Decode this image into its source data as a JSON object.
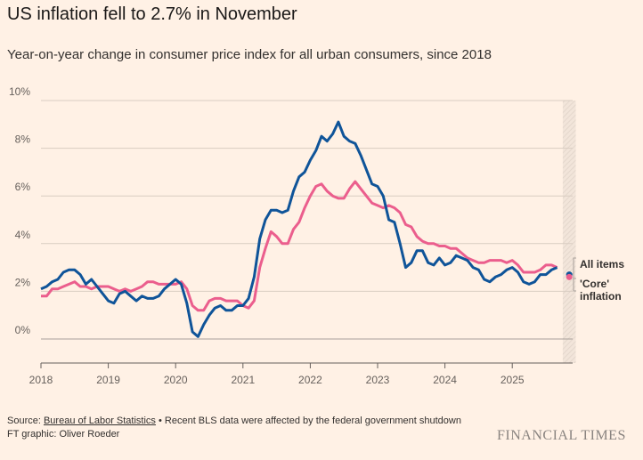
{
  "header": {
    "title": "US inflation fell to 2.7% in November",
    "subtitle": "Year-on-year change in consumer price index for all urban consumers, since 2018"
  },
  "chart_data": {
    "type": "line",
    "title": "US inflation fell to 2.7% in November",
    "xlabel": "",
    "ylabel": "",
    "ylim": [
      -1,
      10
    ],
    "yticks": [
      {
        "v": 10,
        "label": "10%"
      },
      {
        "v": 8,
        "label": "8%"
      },
      {
        "v": 6,
        "label": "6%"
      },
      {
        "v": 4,
        "label": "4%"
      },
      {
        "v": 2,
        "label": "2%"
      },
      {
        "v": 0,
        "label": "0%"
      }
    ],
    "xticks": [
      "2018",
      "2019",
      "2020",
      "2021",
      "2022",
      "2023",
      "2024",
      "2025"
    ],
    "start": "2018-01",
    "frequency": "monthly",
    "shaded_period": "2025-10 to 2025-11",
    "series": [
      {
        "name": "All items",
        "color": "#0f5499",
        "values": [
          2.1,
          2.2,
          2.4,
          2.5,
          2.8,
          2.9,
          2.9,
          2.7,
          2.3,
          2.5,
          2.2,
          1.9,
          1.6,
          1.5,
          1.9,
          2.0,
          1.8,
          1.6,
          1.8,
          1.7,
          1.7,
          1.8,
          2.1,
          2.3,
          2.5,
          2.3,
          1.5,
          0.3,
          0.1,
          0.6,
          1.0,
          1.3,
          1.4,
          1.2,
          1.2,
          1.4,
          1.4,
          1.7,
          2.6,
          4.2,
          5.0,
          5.4,
          5.4,
          5.3,
          5.4,
          6.2,
          6.8,
          7.0,
          7.5,
          7.9,
          8.5,
          8.3,
          8.6,
          9.1,
          8.5,
          8.3,
          8.2,
          7.7,
          7.1,
          6.5,
          6.4,
          6.0,
          5.0,
          4.9,
          4.0,
          3.0,
          3.2,
          3.7,
          3.7,
          3.2,
          3.1,
          3.4,
          3.1,
          3.2,
          3.5,
          3.4,
          3.3,
          3.0,
          2.9,
          2.5,
          2.4,
          2.6,
          2.7,
          2.9,
          3.0,
          2.8,
          2.4,
          2.3,
          2.4,
          2.7,
          2.7,
          2.9,
          3.0
        ],
        "latest": 2.7
      },
      {
        "name": "'Core' inflation",
        "color": "#eb5e8d",
        "values": [
          1.8,
          1.8,
          2.1,
          2.1,
          2.2,
          2.3,
          2.4,
          2.2,
          2.2,
          2.1,
          2.2,
          2.2,
          2.2,
          2.1,
          2.0,
          2.1,
          2.0,
          2.1,
          2.2,
          2.4,
          2.4,
          2.3,
          2.3,
          2.3,
          2.3,
          2.4,
          2.1,
          1.4,
          1.2,
          1.2,
          1.6,
          1.7,
          1.7,
          1.6,
          1.6,
          1.6,
          1.4,
          1.3,
          1.6,
          3.0,
          3.8,
          4.5,
          4.3,
          4.0,
          4.0,
          4.6,
          4.9,
          5.5,
          6.0,
          6.4,
          6.5,
          6.2,
          6.0,
          5.9,
          5.9,
          6.3,
          6.6,
          6.3,
          6.0,
          5.7,
          5.6,
          5.5,
          5.6,
          5.5,
          5.3,
          4.8,
          4.7,
          4.3,
          4.1,
          4.0,
          4.0,
          3.9,
          3.9,
          3.8,
          3.8,
          3.6,
          3.4,
          3.3,
          3.2,
          3.2,
          3.3,
          3.3,
          3.3,
          3.2,
          3.3,
          3.1,
          2.8,
          2.8,
          2.8,
          2.9,
          3.1,
          3.1,
          3.0
        ],
        "latest": 2.6
      }
    ],
    "legend": {
      "placement": "right",
      "labels": [
        "All items",
        "'Core'",
        "inflation"
      ]
    }
  },
  "footer": {
    "source_prefix": "Source: ",
    "source_link": "Bureau of Labor Statistics",
    "source_note": " • Recent BLS data were affected by the federal government shutdown",
    "credit": "FT graphic: Oliver Roeder",
    "logo": "FINANCIAL TIMES"
  }
}
